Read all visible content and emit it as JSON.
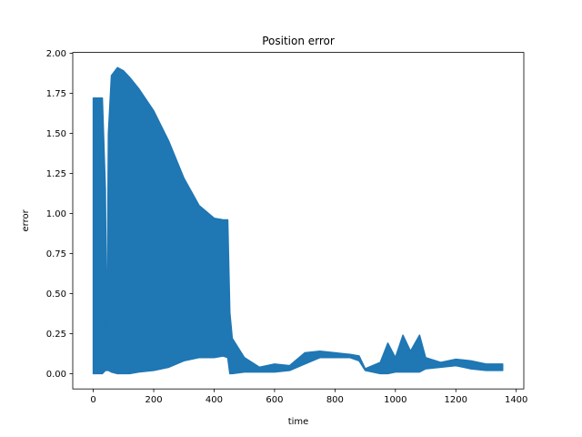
{
  "chart_data": {
    "type": "line",
    "title": "Position error",
    "xlabel": "time",
    "ylabel": "error",
    "xlim": [
      -68,
      1425
    ],
    "ylim": [
      -0.0955,
      2.005
    ],
    "xticks": [
      0,
      200,
      400,
      600,
      800,
      1000,
      1200,
      1400
    ],
    "yticks": [
      0.0,
      0.25,
      0.5,
      0.75,
      1.0,
      1.25,
      1.5,
      1.75,
      2.0
    ],
    "xtick_labels": [
      "0",
      "200",
      "400",
      "600",
      "800",
      "1000",
      "1200",
      "1400"
    ],
    "ytick_labels": [
      "0.00",
      "0.25",
      "0.50",
      "0.75",
      "1.00",
      "1.25",
      "1.50",
      "1.75",
      "2.00"
    ],
    "grid": false,
    "series": [
      {
        "color": "#1f77b4",
        "x": [
          0,
          20,
          21,
          30,
          40,
          45,
          50,
          60,
          80,
          100,
          120,
          150,
          200,
          250,
          300,
          350,
          400,
          430,
          445,
          452,
          460,
          500,
          550,
          600,
          650,
          700,
          750,
          800,
          850,
          880,
          900,
          950,
          975,
          1000,
          1025,
          1050,
          1080,
          1100,
          1150,
          1200,
          1250,
          1300,
          1355
        ],
        "upper": [
          1.72,
          1.72,
          1.72,
          1.72,
          1.15,
          0.1,
          1.5,
          1.86,
          1.91,
          1.89,
          1.85,
          1.78,
          1.64,
          1.45,
          1.22,
          1.05,
          0.97,
          0.96,
          0.96,
          0.38,
          0.22,
          0.1,
          0.04,
          0.06,
          0.05,
          0.13,
          0.14,
          0.13,
          0.12,
          0.11,
          0.03,
          0.07,
          0.19,
          0.1,
          0.24,
          0.14,
          0.24,
          0.1,
          0.07,
          0.09,
          0.08,
          0.06,
          0.06
        ],
        "lower": [
          0.0,
          0.0,
          0.0,
          0.0,
          0.02,
          0.02,
          0.02,
          0.01,
          0.0,
          0.0,
          0.0,
          0.01,
          0.02,
          0.04,
          0.08,
          0.1,
          0.1,
          0.11,
          0.1,
          0.0,
          0.0,
          0.01,
          0.01,
          0.01,
          0.02,
          0.06,
          0.1,
          0.1,
          0.1,
          0.08,
          0.02,
          0.0,
          0.0,
          0.01,
          0.01,
          0.01,
          0.01,
          0.03,
          0.04,
          0.05,
          0.03,
          0.02,
          0.02
        ]
      }
    ]
  }
}
